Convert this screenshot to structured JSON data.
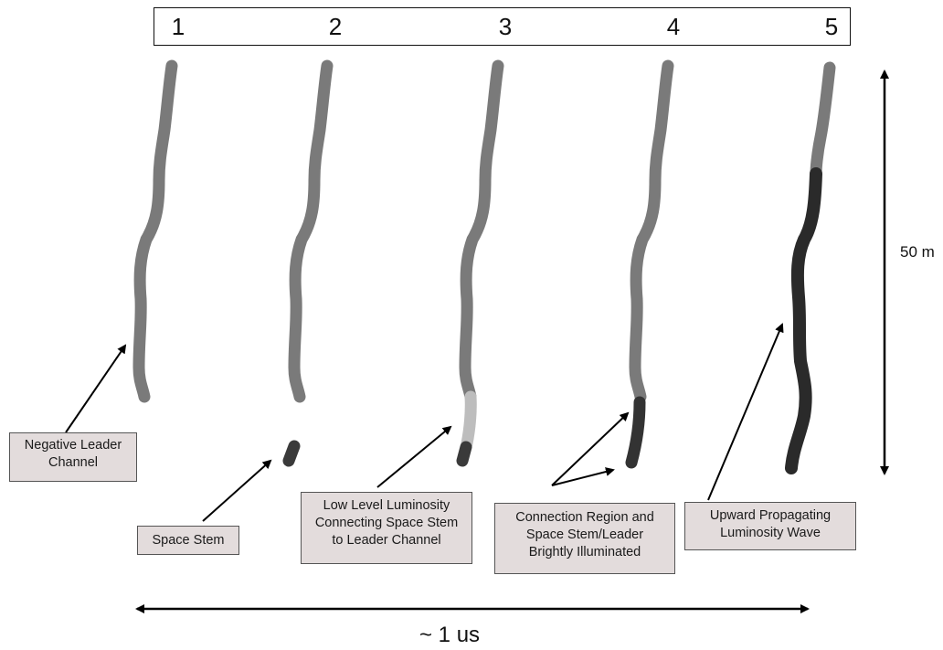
{
  "frames": [
    "1",
    "2",
    "3",
    "4",
    "5"
  ],
  "labels": {
    "negative_leader": "Negative Leader Channel",
    "space_stem": "Space Stem",
    "low_level": "Low Level Luminosity Connecting Space Stem to Leader Channel",
    "connection": "Connection Region and Space Stem/Leader Brightly Illuminated",
    "upward": "Upward Propagating Luminosity Wave"
  },
  "scale": {
    "vertical": "50 m",
    "horizontal": "~ 1 us"
  },
  "colors": {
    "channel": "#7a7a7a",
    "dim_connection": "#bdbdbd",
    "bright": "#2e2e2e",
    "callout_bg": "#e3dcdc"
  }
}
